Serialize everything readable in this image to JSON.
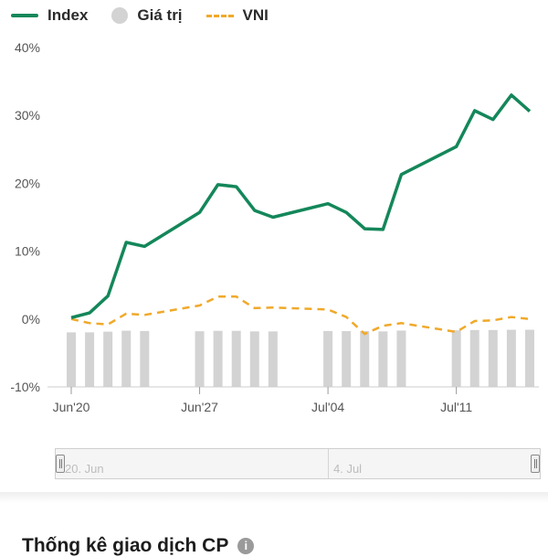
{
  "legend": [
    {
      "label": "Index",
      "color": "#14875a",
      "kind": "line"
    },
    {
      "label": "Giá trị",
      "color": "#d3d3d3",
      "kind": "dot"
    },
    {
      "label": "VNI",
      "color": "#f0a92a",
      "kind": "dash"
    }
  ],
  "navigator": {
    "start_label": "20. Jun",
    "mid_label": "4. Jul"
  },
  "section": {
    "title": "Thống kê giao dịch CP",
    "info_icon": "info-icon"
  },
  "chart_data": {
    "type": "line",
    "ylim": [
      -10,
      40
    ],
    "yticks": [
      -10,
      0,
      10,
      20,
      30,
      40
    ],
    "ytick_labels": [
      "-10%",
      "0%",
      "10%",
      "20%",
      "30%",
      "40%"
    ],
    "xlim": [
      0,
      25.5
    ],
    "xticks": [
      {
        "x": 0,
        "label": "Jun'20"
      },
      {
        "x": 7,
        "label": "Jun'27"
      },
      {
        "x": 14,
        "label": "Jul'04"
      },
      {
        "x": 21,
        "label": "Jul'11"
      }
    ],
    "grid": false,
    "legend_position": "top-left",
    "series": [
      {
        "name": "Index",
        "type": "line",
        "color": "#14875a",
        "x": [
          0,
          1,
          2,
          3,
          4,
          7,
          8,
          9,
          10,
          11,
          14,
          15,
          16,
          17,
          18,
          21,
          22,
          23,
          24,
          25
        ],
        "y": [
          0.2,
          0.9,
          3.4,
          11.3,
          10.7,
          15.7,
          19.8,
          19.5,
          16.0,
          15.0,
          17.0,
          15.7,
          13.3,
          13.2,
          21.3,
          25.4,
          30.7,
          29.4,
          33.0,
          30.6
        ]
      },
      {
        "name": "VNI",
        "type": "dash",
        "color": "#f0a92a",
        "x": [
          0,
          1,
          2,
          3,
          4,
          7,
          8,
          9,
          10,
          11,
          14,
          15,
          16,
          17,
          18,
          21,
          22,
          23,
          24,
          25
        ],
        "y": [
          0.0,
          -0.6,
          -0.8,
          0.8,
          0.6,
          2.0,
          3.3,
          3.3,
          1.6,
          1.7,
          1.4,
          0.3,
          -2.2,
          -1.0,
          -0.6,
          -1.9,
          -0.3,
          -0.2,
          0.3,
          0.0
        ]
      },
      {
        "name": "Giá trị",
        "type": "bar",
        "color": "#d3d3d3",
        "x": [
          0,
          1,
          2,
          3,
          4,
          7,
          8,
          9,
          10,
          11,
          14,
          15,
          16,
          17,
          18,
          21,
          22,
          23,
          24,
          25
        ],
        "y": [
          7.7,
          7.7,
          8.2,
          8.9,
          8.7,
          8.5,
          8.8,
          8.8,
          8.4,
          8.4,
          8.7,
          8.6,
          8.6,
          8.4,
          9.0,
          9.2,
          9.4,
          9.4,
          9.6,
          9.6
        ]
      }
    ]
  }
}
